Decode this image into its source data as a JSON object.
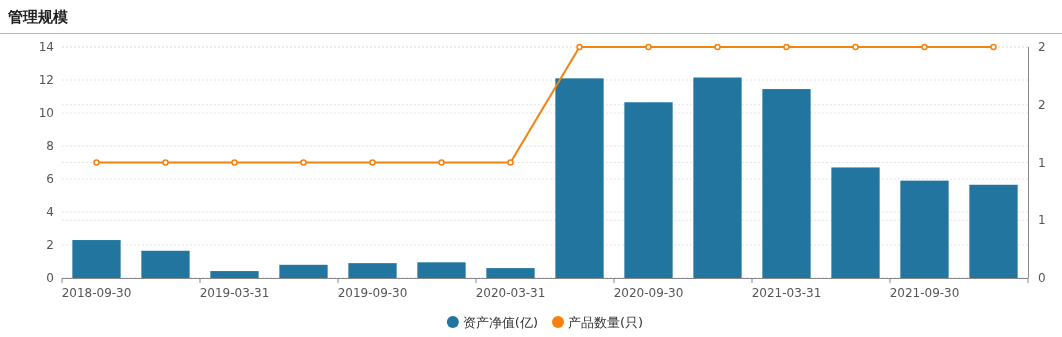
{
  "chart_data": {
    "type": "bar",
    "title": "管理规模",
    "categories": [
      "2018-09-30",
      null,
      "2019-03-31",
      null,
      "2019-09-30",
      null,
      "2020-03-31",
      null,
      "2020-09-30",
      null,
      "2021-03-31",
      null,
      "2021-09-30",
      null
    ],
    "series": [
      {
        "name": "资产净值(亿)",
        "color": "#21759f",
        "values": [
          2.3,
          1.65,
          0.42,
          0.8,
          0.9,
          0.95,
          0.6,
          12.1,
          10.65,
          12.15,
          11.45,
          6.7,
          5.9,
          5.65
        ]
      },
      {
        "name": "产品数量(只)",
        "type": "line",
        "axis": "y2",
        "color": "#f5820f",
        "marker": "circle",
        "values": [
          1,
          1,
          1,
          1,
          1,
          1,
          1,
          2,
          2,
          2,
          2,
          2,
          2,
          2
        ]
      }
    ],
    "ylim": [
      0,
      14
    ],
    "yticks": [
      0,
      2,
      4,
      6,
      8,
      10,
      12,
      14
    ],
    "y2lim": [
      0,
      2
    ],
    "y2ticks": [
      0,
      {
        "value": 0.5,
        "label": "1"
      },
      1,
      {
        "value": 1.5,
        "label": "2"
      },
      2
    ],
    "grid": "y",
    "legend": "bottom"
  }
}
